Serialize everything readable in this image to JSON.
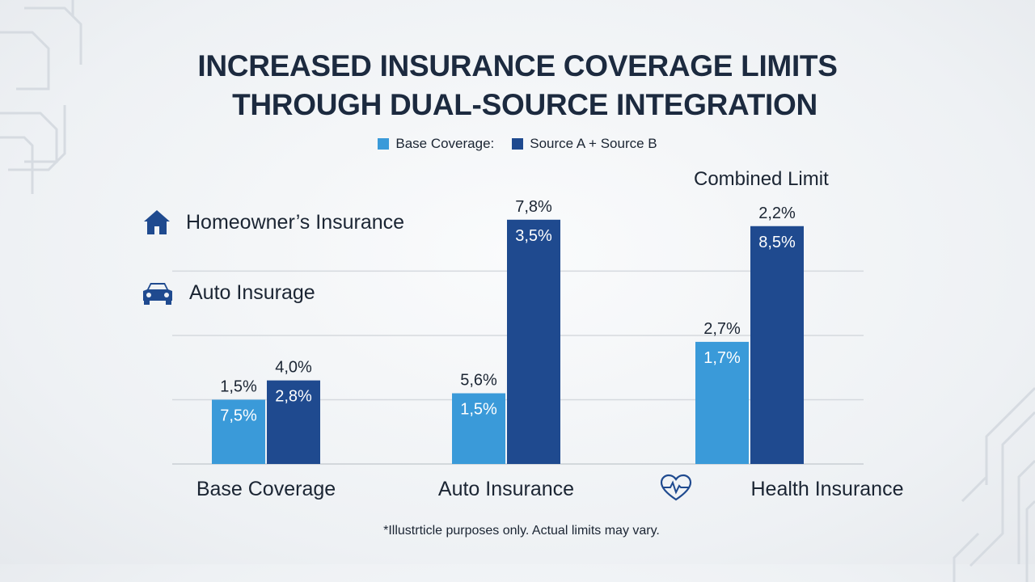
{
  "title_line1": "INCREASED INSURANCE COVERAGE LIMITS",
  "title_line2": "THROUGH DUAL-SOURCE INTEGRATION",
  "legend": [
    {
      "label": "Base Coverage:",
      "color": "#3a9ad9"
    },
    {
      "label": "Source A + Source B",
      "color": "#1f4a8f"
    }
  ],
  "combined_label": "Combined Limit",
  "side_labels": {
    "homeowners": "Homeowner’s Insurance",
    "auto": "Auto Insurage"
  },
  "footnote": "*Illustrticle purposes only. Actual limits may vary.",
  "colors": {
    "base": "#3a9ad9",
    "source": "#1f4a8f",
    "grid": "#d5d9de"
  },
  "chart_data": {
    "type": "bar",
    "title": "INCREASED INSURANCE COVERAGE LIMITS THROUGH DUAL-SOURCE INTEGRATION",
    "categories": [
      "Base Coverage",
      "Auto Insurance",
      "Health Insurance"
    ],
    "series": [
      {
        "name": "Base Coverage:",
        "values": [
          1.0,
          1.1,
          1.9
        ],
        "top_labels": [
          "1,5%",
          "5,6%",
          "2,7%"
        ],
        "inner_labels": [
          "7,5%",
          "1,5%",
          "1,7%"
        ]
      },
      {
        "name": "Source A + Source B",
        "values": [
          1.3,
          3.8,
          3.7
        ],
        "top_labels": [
          "4,0%",
          "7,8%",
          "2,2%"
        ],
        "inner_labels": [
          "2,8%",
          "3,5%",
          "8,5%"
        ]
      }
    ],
    "ylim": [
      0,
      4.2
    ],
    "gridlines": [
      1,
      2,
      3
    ],
    "grid": true,
    "legend_position": "top-center",
    "xlabel": "",
    "ylabel": ""
  }
}
